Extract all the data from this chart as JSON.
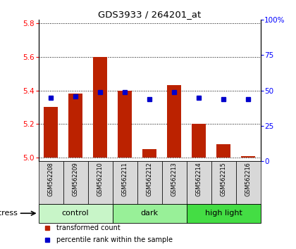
{
  "title": "GDS3933 / 264201_at",
  "samples": [
    "GSM562208",
    "GSM562209",
    "GSM562210",
    "GSM562211",
    "GSM562212",
    "GSM562213",
    "GSM562214",
    "GSM562215",
    "GSM562216"
  ],
  "red_values": [
    5.3,
    5.38,
    5.6,
    5.4,
    5.05,
    5.43,
    5.2,
    5.08,
    5.01
  ],
  "blue_pct": [
    45,
    46,
    49,
    49,
    44,
    49,
    45,
    44,
    44
  ],
  "ylim_left": [
    4.98,
    5.82
  ],
  "ylim_right": [
    0,
    100
  ],
  "yticks_left": [
    5.0,
    5.2,
    5.4,
    5.6,
    5.8
  ],
  "yticks_right": [
    0,
    25,
    50,
    75,
    100
  ],
  "groups": [
    {
      "label": "control",
      "start": 0,
      "end": 3,
      "color": "#c8f5c8"
    },
    {
      "label": "dark",
      "start": 3,
      "end": 6,
      "color": "#98f098"
    },
    {
      "label": "high light",
      "start": 6,
      "end": 9,
      "color": "#44dd44"
    }
  ],
  "stress_label": "stress",
  "legend_red": "transformed count",
  "legend_blue": "percentile rank within the sample",
  "bar_color": "#bb2200",
  "dot_color": "#0000cc",
  "bar_width": 0.55,
  "base_value": 5.0
}
